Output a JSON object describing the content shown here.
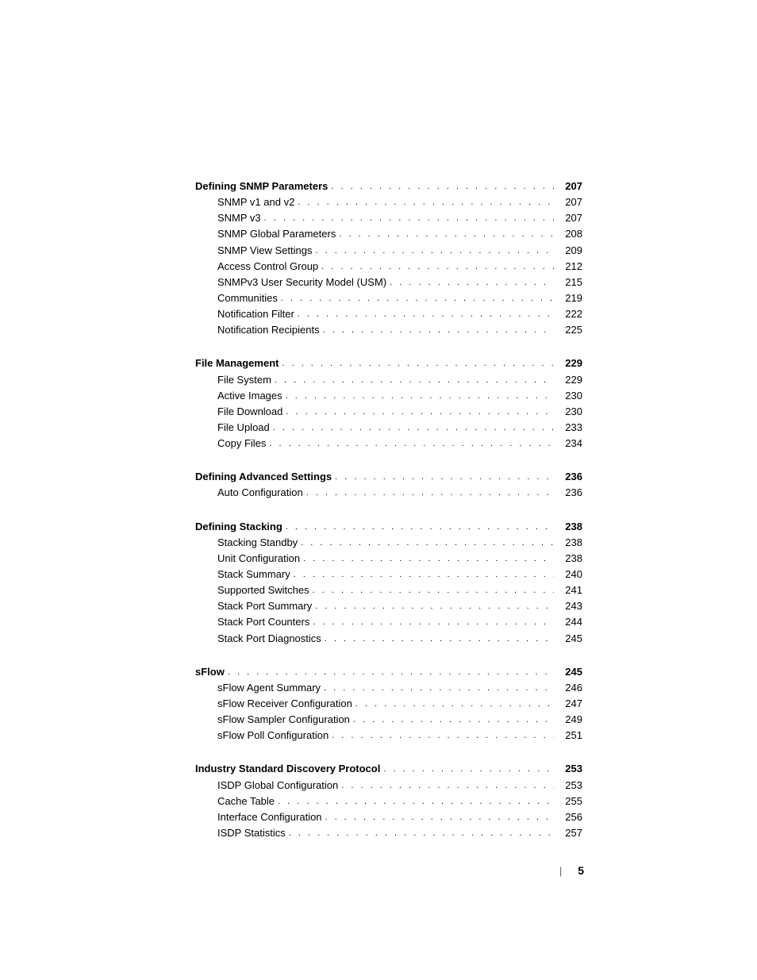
{
  "page_number": "5",
  "sections": [
    {
      "heading": {
        "label": "Defining SNMP Parameters",
        "page": "207"
      },
      "items": [
        {
          "label": "SNMP v1 and v2",
          "page": "207"
        },
        {
          "label": "SNMP v3",
          "page": "207"
        },
        {
          "label": "SNMP Global Parameters",
          "page": "208"
        },
        {
          "label": "SNMP View Settings",
          "page": "209"
        },
        {
          "label": "Access Control Group",
          "page": "212"
        },
        {
          "label": "SNMPv3 User Security Model (USM)",
          "page": "215"
        },
        {
          "label": "Communities",
          "page": "219"
        },
        {
          "label": "Notification Filter",
          "page": "222"
        },
        {
          "label": "Notification Recipients",
          "page": "225"
        }
      ]
    },
    {
      "heading": {
        "label": "File Management",
        "page": "229"
      },
      "items": [
        {
          "label": "File System",
          "page": "229"
        },
        {
          "label": "Active Images",
          "page": "230"
        },
        {
          "label": "File Download",
          "page": "230"
        },
        {
          "label": "File Upload",
          "page": "233"
        },
        {
          "label": "Copy Files",
          "page": "234"
        }
      ]
    },
    {
      "heading": {
        "label": "Defining Advanced Settings",
        "page": "236"
      },
      "items": [
        {
          "label": "Auto Configuration",
          "page": "236"
        }
      ]
    },
    {
      "heading": {
        "label": "Defining Stacking",
        "page": "238"
      },
      "items": [
        {
          "label": "Stacking Standby",
          "page": "238"
        },
        {
          "label": "Unit Configuration",
          "page": "238"
        },
        {
          "label": "Stack Summary",
          "page": "240"
        },
        {
          "label": "Supported Switches",
          "page": "241"
        },
        {
          "label": "Stack Port Summary",
          "page": "243"
        },
        {
          "label": "Stack Port Counters",
          "page": "244"
        },
        {
          "label": "Stack Port Diagnostics",
          "page": "245"
        }
      ]
    },
    {
      "heading": {
        "label": "sFlow",
        "page": "245"
      },
      "items": [
        {
          "label": "sFlow Agent Summary",
          "page": "246"
        },
        {
          "label": "sFlow Receiver Configuration",
          "page": "247"
        },
        {
          "label": "sFlow Sampler Configuration",
          "page": "249"
        },
        {
          "label": "sFlow Poll Configuration",
          "page": "251"
        }
      ]
    },
    {
      "heading": {
        "label": "Industry Standard Discovery Protocol",
        "page": "253"
      },
      "items": [
        {
          "label": "ISDP Global Configuration",
          "page": "253"
        },
        {
          "label": "Cache Table",
          "page": "255"
        },
        {
          "label": "Interface Configuration",
          "page": "256"
        },
        {
          "label": "ISDP Statistics",
          "page": "257"
        }
      ]
    }
  ]
}
